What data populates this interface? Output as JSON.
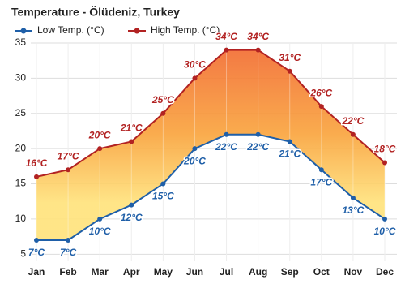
{
  "chart_data": {
    "type": "line",
    "title": "Temperature - Ölüdeniz, Turkey",
    "categories": [
      "Jan",
      "Feb",
      "Mar",
      "Apr",
      "May",
      "Jun",
      "Jul",
      "Aug",
      "Sep",
      "Oct",
      "Nov",
      "Dec"
    ],
    "series": [
      {
        "name": "Low Temp. (°C)",
        "color": "#1f5fa8",
        "values": [
          7,
          7,
          10,
          12,
          15,
          20,
          22,
          22,
          21,
          17,
          13,
          10
        ],
        "value_labels": [
          "7°C",
          "7°C",
          "10°C",
          "12°C",
          "15°C",
          "20°C",
          "22°C",
          "22°C",
          "21°C",
          "17°C",
          "13°C",
          "10°C"
        ]
      },
      {
        "name": "High Temp. (°C)",
        "color": "#b22222",
        "values": [
          16,
          17,
          20,
          21,
          25,
          30,
          34,
          34,
          31,
          26,
          22,
          18
        ],
        "value_labels": [
          "16°C",
          "17°C",
          "20°C",
          "21°C",
          "25°C",
          "30°C",
          "34°C",
          "34°C",
          "31°C",
          "26°C",
          "22°C",
          "18°C"
        ]
      }
    ],
    "ylim": [
      4,
      35
    ],
    "yticks": [
      5,
      10,
      15,
      20,
      25,
      30,
      35
    ],
    "grid": true
  }
}
